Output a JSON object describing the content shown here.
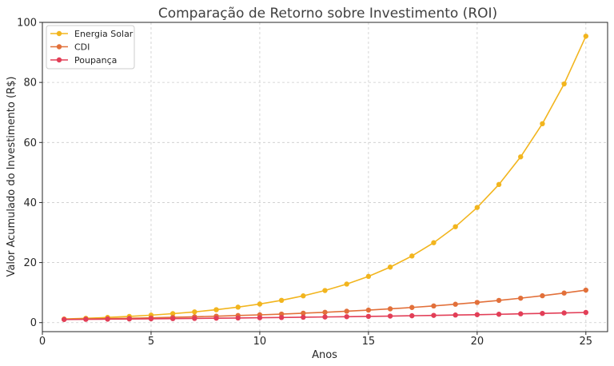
{
  "chart_data": {
    "type": "line",
    "title": "Comparação de Retorno sobre Investimento (ROI)",
    "xlabel": "Anos",
    "ylabel": "Valor Acumulado do Investimento (R$)",
    "xlim": [
      0,
      26
    ],
    "ylim": [
      -3,
      100
    ],
    "x_ticks": [
      0,
      5,
      10,
      15,
      20,
      25
    ],
    "y_ticks": [
      0,
      20,
      40,
      60,
      80,
      100
    ],
    "grid": true,
    "legend_position": "top-left",
    "x": [
      1,
      2,
      3,
      4,
      5,
      6,
      7,
      8,
      9,
      10,
      11,
      12,
      13,
      14,
      15,
      16,
      17,
      18,
      19,
      20,
      21,
      22,
      23,
      24,
      25
    ],
    "series": [
      {
        "name": "Energia Solar",
        "color": "#f2b51e",
        "values": [
          1.2,
          1.44,
          1.73,
          2.07,
          2.49,
          2.99,
          3.58,
          4.3,
          5.16,
          6.19,
          7.43,
          8.92,
          10.7,
          12.84,
          15.41,
          18.49,
          22.19,
          26.62,
          31.95,
          38.34,
          46.01,
          55.21,
          66.25,
          79.5,
          95.4
        ]
      },
      {
        "name": "CDI",
        "color": "#e2703a",
        "values": [
          1.1,
          1.21,
          1.33,
          1.46,
          1.61,
          1.77,
          1.95,
          2.14,
          2.36,
          2.59,
          2.85,
          3.14,
          3.45,
          3.8,
          4.18,
          4.59,
          5.05,
          5.56,
          6.12,
          6.73,
          7.4,
          8.14,
          8.95,
          9.85,
          10.83
        ]
      },
      {
        "name": "Poupança",
        "color": "#e23e57",
        "values": [
          1.05,
          1.1,
          1.16,
          1.22,
          1.28,
          1.34,
          1.41,
          1.48,
          1.55,
          1.63,
          1.71,
          1.8,
          1.89,
          1.98,
          2.08,
          2.18,
          2.29,
          2.41,
          2.53,
          2.65,
          2.79,
          2.93,
          3.07,
          3.23,
          3.39
        ]
      }
    ]
  }
}
